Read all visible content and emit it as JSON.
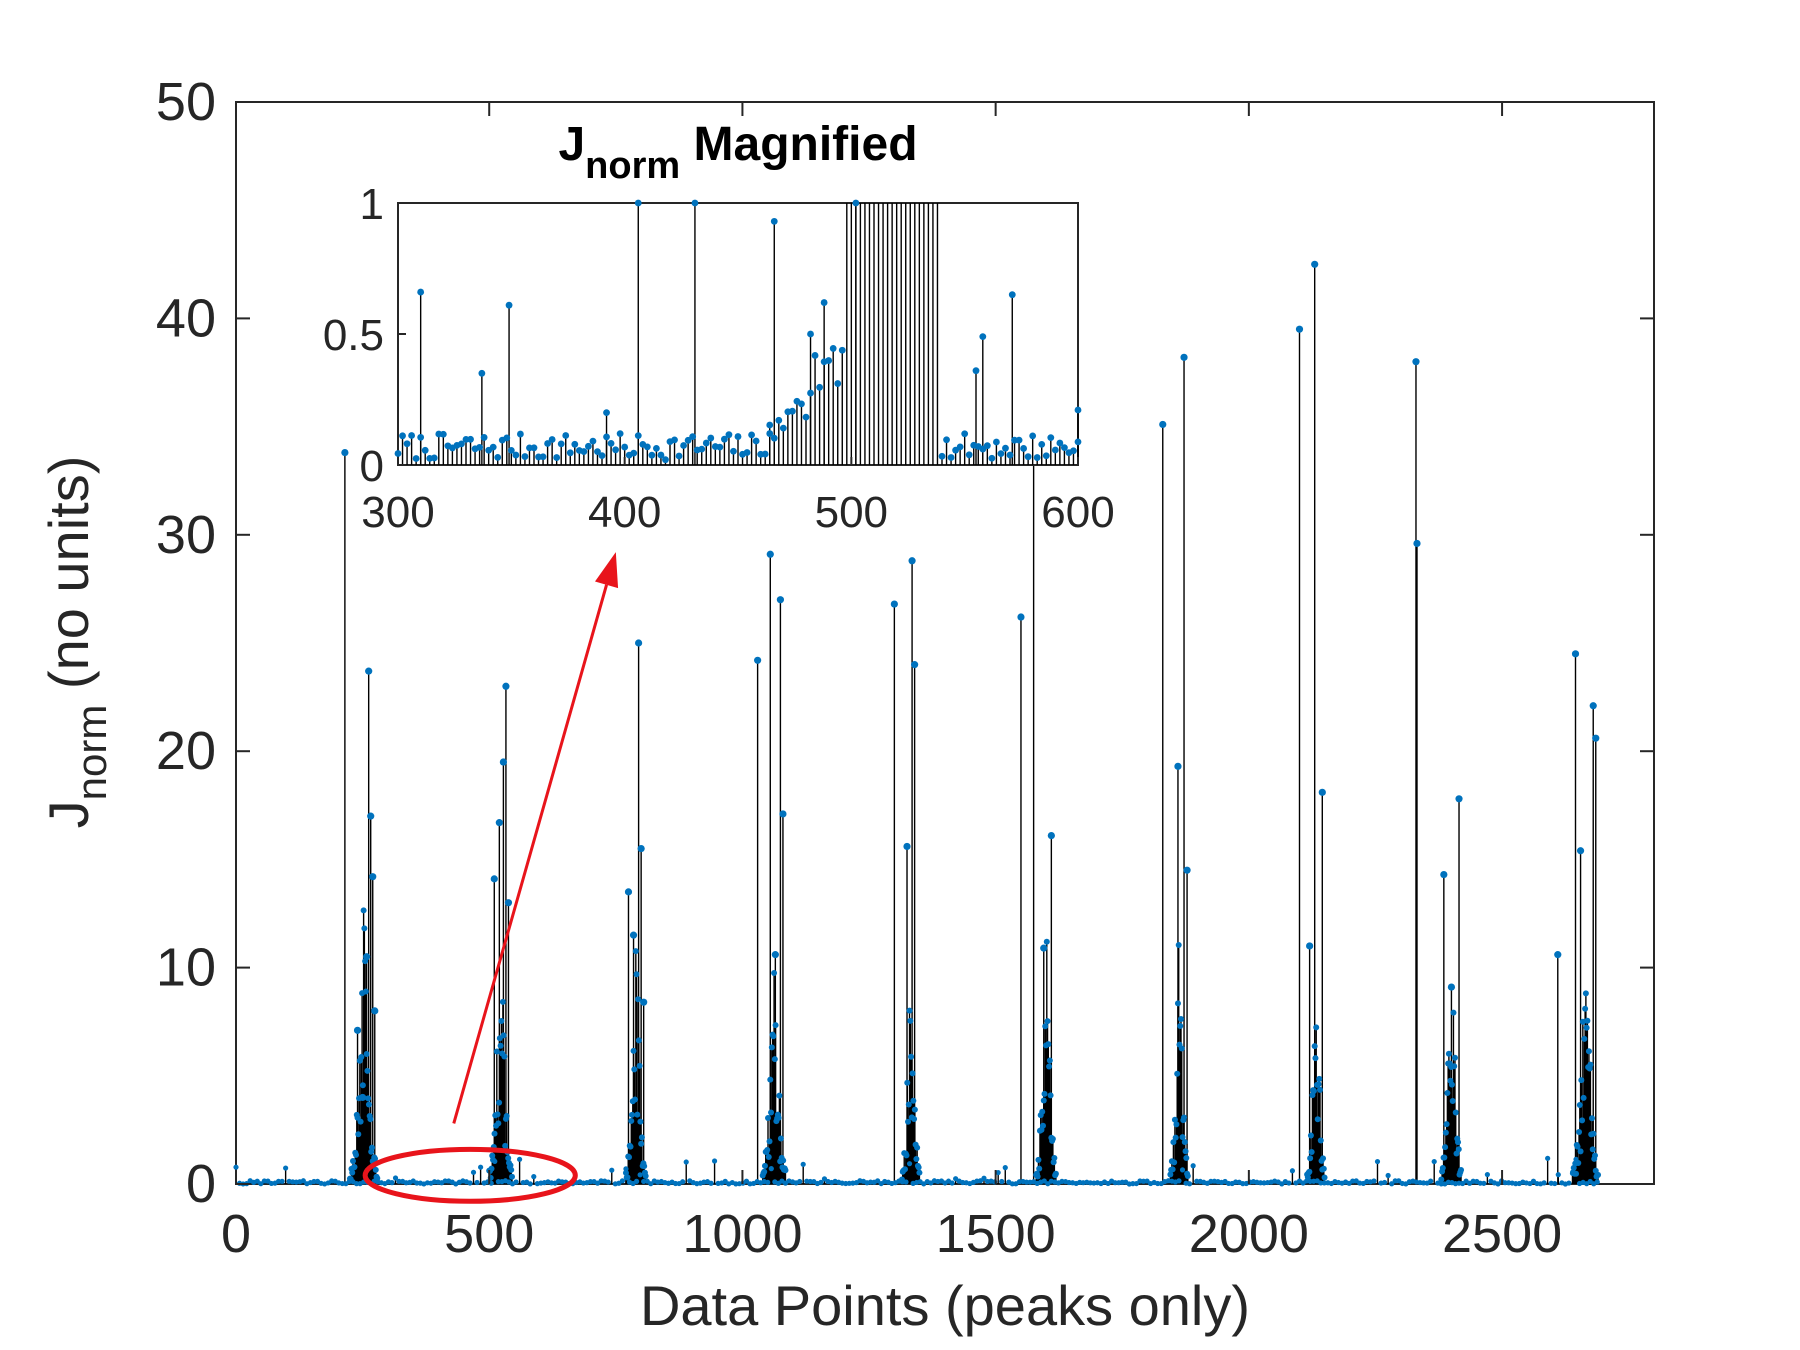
{
  "chart_data": [
    {
      "type": "stem",
      "role": "main",
      "xlabel": "Data Points (peaks only)",
      "ylabel": "J",
      "ylabel_subscript": "norm",
      "ylabel_suffix": "(no units)",
      "xlim": [
        0,
        2800
      ],
      "ylim": [
        0,
        50
      ],
      "xticks": [
        0,
        500,
        1000,
        1500,
        2000,
        2500
      ],
      "xtick_labels": [
        "0",
        "500",
        "1000",
        "1500",
        "2000",
        "2500"
      ],
      "yticks": [
        0,
        10,
        20,
        30,
        40,
        50
      ],
      "ytick_labels": [
        "0",
        "10",
        "20",
        "30",
        "40",
        "50"
      ],
      "grid": false,
      "x_max_data": 2690,
      "baseline_level": 0.15,
      "clusters": [
        {
          "start": 225,
          "end": 280,
          "peaks": [
            [
              215,
              33.8
            ],
            [
              240,
              7.1
            ],
            [
              250,
              4.0
            ],
            [
              258,
              10.5
            ],
            [
              262,
              23.7
            ],
            [
              266,
              17.0
            ],
            [
              270,
              14.2
            ],
            [
              274,
              8.0
            ]
          ]
        },
        {
          "start": 500,
          "end": 545,
          "peaks": [
            [
              510,
              14.1
            ],
            [
              520,
              16.7
            ],
            [
              528,
              19.5
            ],
            [
              533,
              23.0
            ],
            [
              538,
              13.0
            ]
          ]
        },
        {
          "start": 770,
          "end": 810,
          "peaks": [
            [
              775,
              13.5
            ],
            [
              785,
              11.5
            ],
            [
              795,
              25.0
            ],
            [
              800,
              15.5
            ],
            [
              805,
              8.4
            ]
          ]
        },
        {
          "start": 1040,
          "end": 1085,
          "peaks": [
            [
              1030,
              24.2
            ],
            [
              1055,
              29.1
            ],
            [
              1065,
              10.6
            ],
            [
              1075,
              27.0
            ],
            [
              1080,
              17.1
            ]
          ]
        },
        {
          "start": 1315,
          "end": 1350,
          "peaks": [
            [
              1300,
              26.8
            ],
            [
              1325,
              15.6
            ],
            [
              1335,
              28.8
            ],
            [
              1340,
              24.0
            ]
          ]
        },
        {
          "start": 1580,
          "end": 1620,
          "peaks": [
            [
              1550,
              26.2
            ],
            [
              1575,
              34.8
            ],
            [
              1595,
              10.9
            ],
            [
              1610,
              16.1
            ]
          ]
        },
        {
          "start": 1845,
          "end": 1880,
          "peaks": [
            [
              1830,
              35.1
            ],
            [
              1860,
              19.3
            ],
            [
              1872,
              38.2
            ],
            [
              1878,
              14.5
            ]
          ]
        },
        {
          "start": 2115,
          "end": 2150,
          "peaks": [
            [
              2100,
              39.5
            ],
            [
              2120,
              11.0
            ],
            [
              2130,
              42.5
            ],
            [
              2145,
              18.1
            ]
          ]
        },
        {
          "start": 2380,
          "end": 2420,
          "peaks": [
            [
              2330,
              38.0
            ],
            [
              2332,
              29.6
            ],
            [
              2385,
              14.3
            ],
            [
              2400,
              9.1
            ],
            [
              2415,
              17.8
            ]
          ]
        },
        {
          "start": 2640,
          "end": 2690,
          "peaks": [
            [
              2610,
              10.6
            ],
            [
              2645,
              24.5
            ],
            [
              2655,
              15.4
            ],
            [
              2680,
              22.1
            ],
            [
              2685,
              20.6
            ]
          ]
        }
      ],
      "highlight_ellipse": {
        "x": [
          255,
          670
        ],
        "y": [
          -0.8,
          1.6
        ],
        "color": "#e8141b"
      },
      "arrow": {
        "from": [
          430,
          2.8
        ],
        "to": [
          750,
          29.2
        ],
        "color": "#e8141b"
      }
    },
    {
      "type": "stem",
      "role": "inset",
      "title": "J",
      "title_subscript": "norm",
      "title_suffix": "Magnified",
      "xlim": [
        300,
        600
      ],
      "ylim": [
        0,
        1
      ],
      "xticks": [
        300,
        400,
        500,
        600
      ],
      "xtick_labels": [
        "300",
        "400",
        "500",
        "600"
      ],
      "yticks": [
        0,
        0.5,
        1
      ],
      "ytick_labels": [
        "0",
        "0.5",
        "1"
      ],
      "grid": false,
      "notable_points": [
        [
          310,
          0.66
        ],
        [
          337,
          0.35
        ],
        [
          349,
          0.61
        ],
        [
          392,
          0.2
        ],
        [
          406,
          1.0
        ],
        [
          431,
          1.0
        ],
        [
          464,
          0.12
        ],
        [
          466,
          0.93
        ],
        [
          482,
          0.5
        ],
        [
          488,
          0.62
        ],
        [
          502,
          1.0
        ],
        [
          555,
          0.36
        ],
        [
          558,
          0.49
        ],
        [
          571,
          0.65
        ],
        [
          600,
          0.21
        ]
      ],
      "dense_region": [
        498,
        538
      ]
    }
  ],
  "colors": {
    "marker": "#0072bd",
    "stem": "#000000",
    "annotation": "#e8141b",
    "axes": "#262626"
  }
}
